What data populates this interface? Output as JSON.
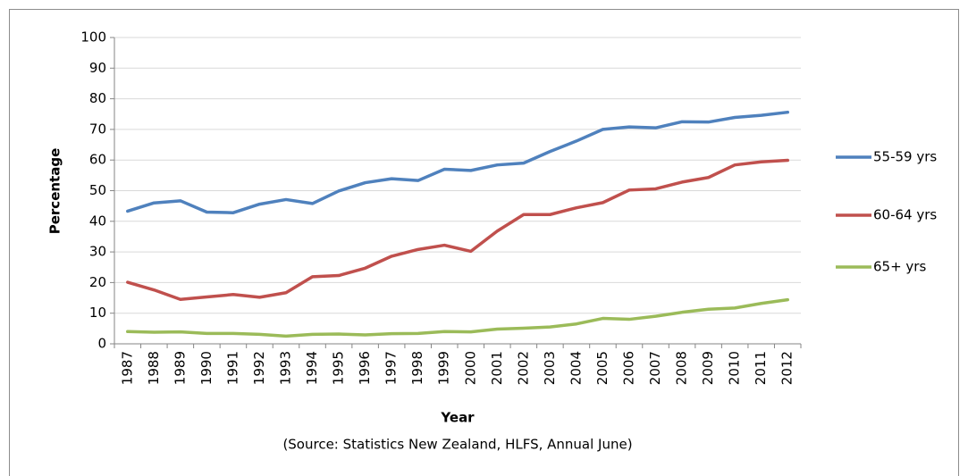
{
  "chart_data": {
    "type": "line",
    "y_label": "Percentage",
    "x_label": "Year",
    "annotation": "(Source: Statistics New Zealand, HLFS, Annual June)",
    "categories": [
      "1987",
      "1988",
      "1989",
      "1990",
      "1991",
      "1992",
      "1993",
      "1994",
      "1995",
      "1996",
      "1997",
      "1998",
      "1999",
      "2000",
      "2001",
      "2002",
      "2003",
      "2004",
      "2005",
      "2006",
      "2007",
      "2008",
      "2009",
      "2010",
      "2011",
      "2012"
    ],
    "series": [
      {
        "name": "55-59 yrs",
        "color": "#4f81bd",
        "values": [
          43.3,
          46,
          46.7,
          43,
          42.8,
          45.6,
          47.1,
          45.8,
          49.9,
          52.6,
          53.9,
          53.3,
          57,
          56.6,
          58.4,
          59,
          62.8,
          66.2,
          70,
          70.8,
          70.5,
          72.5,
          72.4,
          73.9,
          74.6,
          75.6
        ]
      },
      {
        "name": "60-64 yrs",
        "color": "#c0504d",
        "values": [
          20.1,
          17.6,
          14.5,
          15.3,
          16.1,
          15.2,
          16.7,
          21.9,
          22.3,
          24.7,
          28.6,
          30.8,
          32.2,
          30.2,
          36.8,
          42.2,
          42.2,
          44.4,
          46.1,
          50.2,
          50.6,
          52.8,
          54.3,
          58.4,
          59.4,
          59.9
        ]
      },
      {
        "name": "65+ yrs",
        "color": "#9bbb59",
        "values": [
          4,
          3.8,
          3.9,
          3.4,
          3.4,
          3.1,
          2.5,
          3.1,
          3.2,
          2.9,
          3.3,
          3.4,
          4,
          3.9,
          4.8,
          5.1,
          5.5,
          6.5,
          8.3,
          8,
          9,
          10.3,
          11.3,
          11.7,
          13.2,
          14.4
        ]
      }
    ],
    "ylim": [
      0,
      100
    ],
    "yticks": [
      0,
      10,
      20,
      30,
      40,
      50,
      60,
      70,
      80,
      90,
      100
    ],
    "grid": true,
    "legend": "right"
  }
}
